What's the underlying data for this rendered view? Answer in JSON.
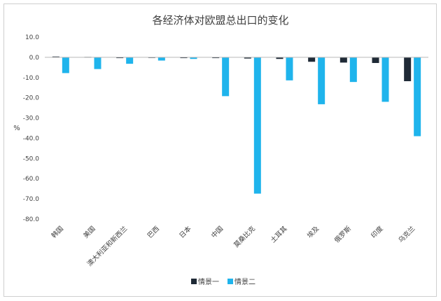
{
  "chart_data": {
    "type": "bar",
    "title": "各经济体对欧盟总出口的变化",
    "xlabel": "",
    "ylabel": "%",
    "ylim": [
      -80,
      10
    ],
    "yticks": [
      "10.0",
      "0.0",
      "-10.0",
      "-20.0",
      "-30.0",
      "-40.0",
      "-50.0",
      "-60.0",
      "-70.0",
      "-80.0"
    ],
    "categories": [
      "韩国",
      "美国",
      "澳大利亚和新西兰",
      "巴西",
      "日本",
      "中国",
      "莫桑比克",
      "土耳其",
      "埃及",
      "俄罗斯",
      "印度",
      "乌克兰"
    ],
    "series": [
      {
        "name": "情景一",
        "color": "#1f2a36",
        "values": [
          0.4,
          0.2,
          -0.4,
          -0.3,
          -0.4,
          -0.4,
          -0.6,
          -0.8,
          -2.2,
          -2.6,
          -2.8,
          -11.8
        ]
      },
      {
        "name": "情景二",
        "color": "#1fb4ec",
        "values": [
          -7.8,
          -5.8,
          -3.2,
          -1.6,
          -0.8,
          -19.2,
          -67.4,
          -11.4,
          -23.2,
          -12.2,
          -22.0,
          -39.0
        ]
      }
    ],
    "grid": false,
    "legend": "bottom"
  }
}
